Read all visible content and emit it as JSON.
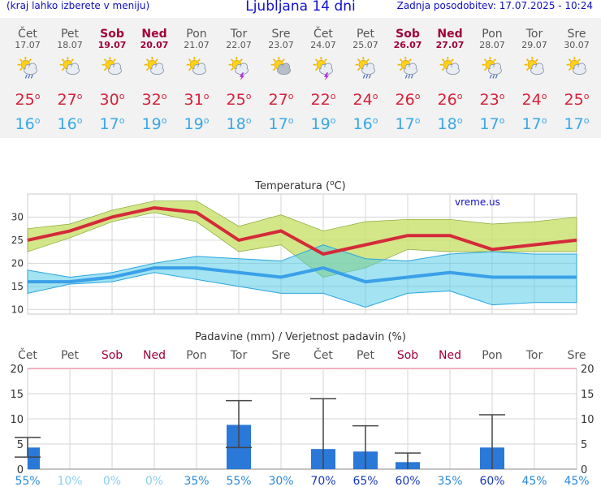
{
  "header": {
    "menu_hint": "(kraj lahko izberete v meniju)",
    "title": "Ljubljana 14 dni",
    "updated": "Zadnja posodobitev: 17.07.2025 - 10:24"
  },
  "days": [
    {
      "name": "Čet",
      "date": "17.07",
      "weekend": false,
      "icon": "sun-cloud-rain-icon",
      "tmax": "25",
      "tmin": "16"
    },
    {
      "name": "Pet",
      "date": "18.07",
      "weekend": false,
      "icon": "sun-cloud-icon",
      "tmax": "27",
      "tmin": "16"
    },
    {
      "name": "Sob",
      "date": "19.07",
      "weekend": true,
      "icon": "sun-cloud-icon",
      "tmax": "30",
      "tmin": "17"
    },
    {
      "name": "Ned",
      "date": "20.07",
      "weekend": true,
      "icon": "sun-cloud-icon",
      "tmax": "32",
      "tmin": "19"
    },
    {
      "name": "Pon",
      "date": "21.07",
      "weekend": false,
      "icon": "sun-cloud-icon",
      "tmax": "31",
      "tmin": "19"
    },
    {
      "name": "Tor",
      "date": "22.07",
      "weekend": false,
      "icon": "sun-cloud-storm-icon",
      "tmax": "25",
      "tmin": "18"
    },
    {
      "name": "Sre",
      "date": "23.07",
      "weekend": false,
      "icon": "sun-cloudy-icon",
      "tmax": "27",
      "tmin": "17"
    },
    {
      "name": "Čet",
      "date": "24.07",
      "weekend": false,
      "icon": "sun-cloud-storm-icon",
      "tmax": "22",
      "tmin": "19"
    },
    {
      "name": "Pet",
      "date": "25.07",
      "weekend": false,
      "icon": "sun-cloud-rain-icon",
      "tmax": "24",
      "tmin": "16"
    },
    {
      "name": "Sob",
      "date": "26.07",
      "weekend": true,
      "icon": "sun-cloud-rain-icon",
      "tmax": "26",
      "tmin": "17"
    },
    {
      "name": "Ned",
      "date": "27.07",
      "weekend": true,
      "icon": "sun-cloud-icon",
      "tmax": "26",
      "tmin": "18"
    },
    {
      "name": "Pon",
      "date": "28.07",
      "weekend": false,
      "icon": "sun-cloud-rain-icon",
      "tmax": "23",
      "tmin": "17"
    },
    {
      "name": "Tor",
      "date": "29.07",
      "weekend": false,
      "icon": "sun-cloud-icon",
      "tmax": "24",
      "tmin": "17"
    },
    {
      "name": "Sre",
      "date": "30.07",
      "weekend": false,
      "icon": "sun-cloud-icon",
      "tmax": "25",
      "tmin": "17"
    }
  ],
  "degree_symbol": "o",
  "colors": {
    "weekend": "#a0003a",
    "tmax": "#d8203a",
    "tmin": "#38a8e8",
    "rain_bar": "#2a78d8"
  },
  "chart_data": [
    {
      "type": "line",
      "title": "Temperatura (oC)",
      "watermark": "vreme.us",
      "ylim": [
        9,
        35
      ],
      "yticks": [
        "10",
        "15",
        "20",
        "25",
        "30"
      ],
      "series": [
        {
          "name": "max",
          "values": [
            25,
            27,
            30,
            32,
            31,
            25,
            27,
            22,
            24,
            26,
            26,
            23,
            24,
            25
          ],
          "upper": [
            27.5,
            28.5,
            31.5,
            33.5,
            33.5,
            28,
            30.5,
            27,
            29,
            29.5,
            29.5,
            28.5,
            29,
            30
          ],
          "lower": [
            22.5,
            25.5,
            29,
            31,
            29,
            22.5,
            24,
            17,
            19,
            23,
            22.5,
            22.5,
            22.5,
            22.5
          ]
        },
        {
          "name": "min",
          "values": [
            16,
            16,
            17,
            19,
            19,
            18,
            17,
            19,
            16,
            17,
            18,
            17,
            17,
            17
          ],
          "upper": [
            18.5,
            17,
            18,
            20,
            21.5,
            21,
            20.5,
            24,
            21,
            20.5,
            22,
            22.5,
            22,
            22
          ],
          "lower": [
            13.5,
            15.5,
            16,
            18,
            16.5,
            15,
            13.5,
            13.5,
            10.5,
            13.5,
            14,
            11,
            11.5,
            11.5
          ]
        }
      ]
    },
    {
      "type": "bar",
      "title": "Padavine (mm) / Verjetnost padavin (%)",
      "categories": [
        "Čet",
        "Pet",
        "Sob",
        "Ned",
        "Pon",
        "Tor",
        "Sre",
        "Čet",
        "Pet",
        "Sob",
        "Ned",
        "Pon",
        "Tor",
        "Sre"
      ],
      "weekend": [
        false,
        false,
        true,
        true,
        false,
        false,
        false,
        false,
        false,
        true,
        true,
        false,
        false,
        false
      ],
      "ylim": [
        0,
        20
      ],
      "yticks": [
        "0",
        "5",
        "10",
        "15",
        "20"
      ],
      "values": [
        4.3,
        0,
        0,
        0,
        0,
        8.8,
        0,
        4.0,
        3.5,
        1.4,
        0,
        4.3,
        0,
        0
      ],
      "error_high": [
        6.3,
        0,
        0,
        0,
        0,
        13.6,
        0,
        14.0,
        8.6,
        3.2,
        0,
        10.8,
        0,
        0
      ],
      "error_low": [
        2.4,
        0,
        0,
        0,
        0,
        4.3,
        0,
        0,
        0,
        0,
        0,
        0,
        0,
        0
      ],
      "probability_offset_labels": [
        "55%",
        "10%",
        "0%",
        "0%",
        "35%",
        "55%",
        "30%",
        "70%",
        "65%",
        "60%",
        "35%",
        "60%",
        "45%",
        "45%"
      ],
      "probability": [
        55,
        10,
        0,
        0,
        35,
        55,
        30,
        70,
        65,
        60,
        35,
        60,
        45,
        45
      ]
    }
  ]
}
